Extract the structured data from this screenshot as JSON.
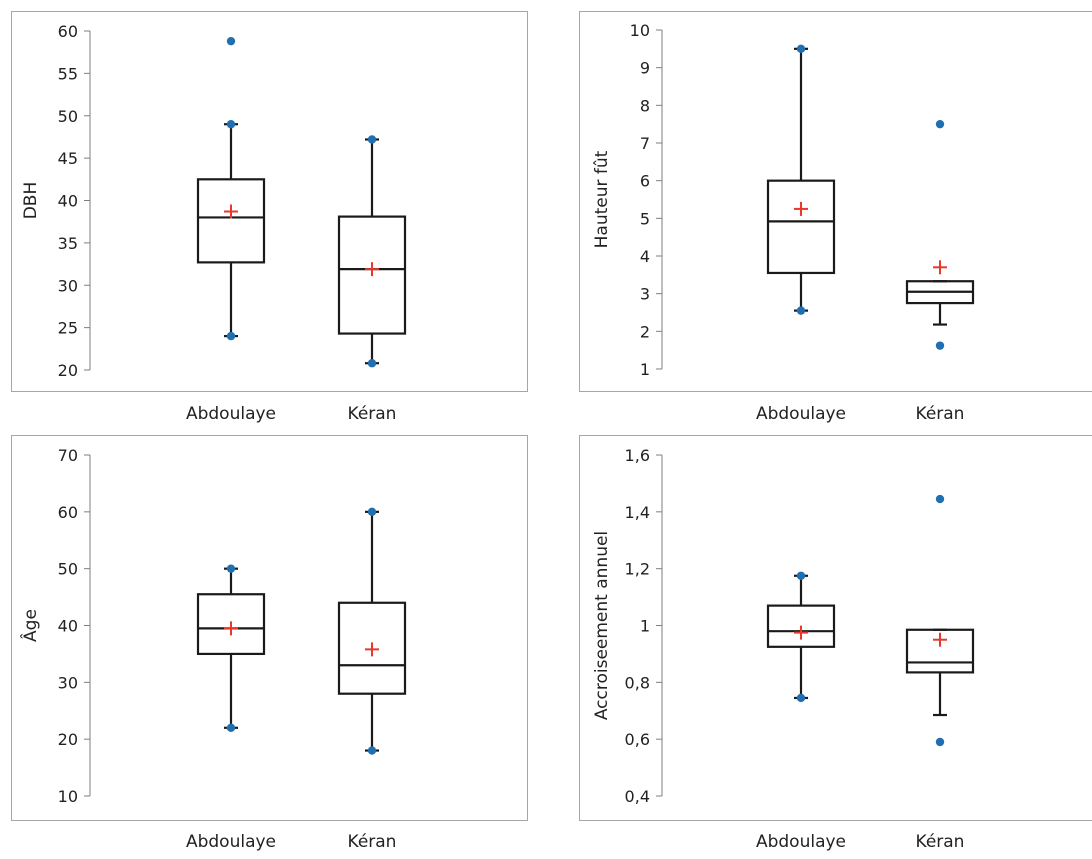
{
  "chart_data": [
    {
      "type": "boxplot",
      "ylabel": "DBH",
      "ylim": [
        20,
        60
      ],
      "yticks": [
        20,
        25,
        30,
        35,
        40,
        45,
        50,
        55,
        60
      ],
      "categories": [
        "Abdoulaye",
        "Kéran"
      ],
      "boxes": [
        {
          "category": "Abdoulaye",
          "whisker_low": 24,
          "q1": 32.7,
          "median": 38,
          "q3": 42.5,
          "whisker_high": 49,
          "mean": 38.7,
          "points": [
            24,
            49,
            58.8
          ]
        },
        {
          "category": "Kéran",
          "whisker_low": 20.8,
          "q1": 24.3,
          "median": 31.9,
          "q3": 38.1,
          "whisker_high": 47.2,
          "mean": 31.9,
          "points": [
            20.8,
            47.2
          ]
        }
      ]
    },
    {
      "type": "boxplot",
      "ylabel": "Hauteur fût",
      "ylim": [
        1,
        10
      ],
      "yticks": [
        1,
        2,
        3,
        4,
        5,
        6,
        7,
        8,
        9,
        10
      ],
      "categories": [
        "Abdoulaye",
        "Kéran"
      ],
      "boxes": [
        {
          "category": "Abdoulaye",
          "whisker_low": 2.55,
          "q1": 3.55,
          "median": 4.92,
          "q3": 6.0,
          "whisker_high": 9.5,
          "mean": 5.25,
          "points": [
            2.55,
            9.5
          ]
        },
        {
          "category": "Kéran",
          "whisker_low": 2.18,
          "q1": 2.75,
          "median": 3.05,
          "q3": 3.33,
          "whisker_high": 3.33,
          "mean": 3.7,
          "points": [
            1.62,
            7.5
          ]
        }
      ]
    },
    {
      "type": "boxplot",
      "ylabel": "Âge",
      "ylim": [
        10,
        70
      ],
      "yticks": [
        10,
        20,
        30,
        40,
        50,
        60,
        70
      ],
      "categories": [
        "Abdoulaye",
        "Kéran"
      ],
      "boxes": [
        {
          "category": "Abdoulaye",
          "whisker_low": 22,
          "q1": 35,
          "median": 39.5,
          "q3": 45.5,
          "whisker_high": 50,
          "mean": 39.5,
          "points": [
            22,
            50
          ]
        },
        {
          "category": "Kéran",
          "whisker_low": 18,
          "q1": 28,
          "median": 33,
          "q3": 44,
          "whisker_high": 60,
          "mean": 35.8,
          "points": [
            18,
            60
          ]
        }
      ]
    },
    {
      "type": "boxplot",
      "ylabel": "Accroiseement annuel",
      "ylim": [
        0.4,
        1.6
      ],
      "yticks": [
        0.4,
        0.6,
        0.8,
        1,
        1.2,
        1.4,
        1.6
      ],
      "ytick_labels": [
        "0,4",
        "0,6",
        "0,8",
        "1",
        "1,2",
        "1,4",
        "1,6"
      ],
      "categories": [
        "Abdoulaye",
        "Kéran"
      ],
      "boxes": [
        {
          "category": "Abdoulaye",
          "whisker_low": 0.745,
          "q1": 0.925,
          "median": 0.98,
          "q3": 1.07,
          "whisker_high": 1.175,
          "mean": 0.975,
          "points": [
            0.745,
            1.175
          ]
        },
        {
          "category": "Kéran",
          "whisker_low": 0.685,
          "q1": 0.835,
          "median": 0.87,
          "q3": 0.985,
          "whisker_high": 0.985,
          "mean": 0.95,
          "points": [
            0.59,
            1.445
          ]
        }
      ]
    }
  ],
  "colors": {
    "box_stroke": "#1a1a1a",
    "point": "#1f6fb2",
    "mean_marker": "#e8382c",
    "frame": "#a6a6a6",
    "axis": "#7f7f7f"
  }
}
